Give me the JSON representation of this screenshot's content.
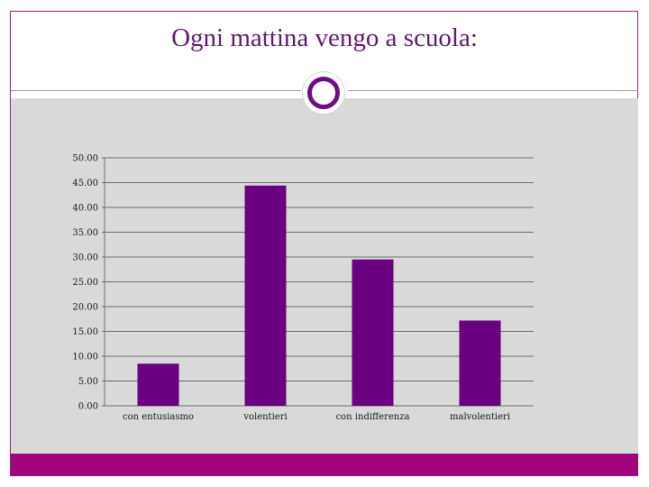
{
  "slide": {
    "title": "Ogni mattina vengo a scuola:"
  },
  "colors": {
    "accent": "#6a0080",
    "plot_background": "#d9d9d9",
    "footer": "#a0057e"
  },
  "chart_data": {
    "type": "bar",
    "categories": [
      "con entusiasmo",
      "volentieri",
      "con indifferenza",
      "malvolentieri"
    ],
    "values": [
      8.5,
      44.4,
      29.5,
      17.2
    ],
    "ylim": [
      0,
      50
    ],
    "yticks": [
      "0.00",
      "5.00",
      "10.00",
      "15.00",
      "20.00",
      "25.00",
      "30.00",
      "35.00",
      "40.00",
      "45.00",
      "50.00"
    ],
    "grid": true,
    "legend": "none",
    "bar_color": "#6a0080"
  }
}
